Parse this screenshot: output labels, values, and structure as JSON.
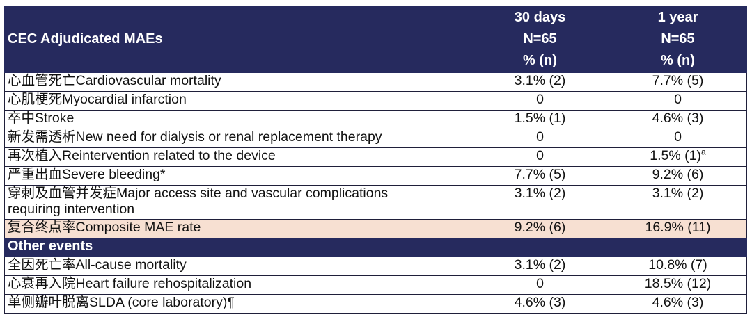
{
  "table": {
    "header": {
      "label": "CEC Adjudicated MAEs",
      "col1": [
        "30 days",
        "N=65",
        "% (n)"
      ],
      "col2": [
        "1 year",
        "N=65",
        "% (n)"
      ]
    },
    "rows": [
      {
        "label": "心血管死亡Cardiovascular mortality",
        "d30": "3.1% (2)",
        "y1": "7.7% (5)"
      },
      {
        "label": "心肌梗死Myocardial infarction",
        "d30": "0",
        "y1": "0"
      },
      {
        "label": "卒中Stroke",
        "d30": "1.5% (1)",
        "y1": "4.6% (3)"
      },
      {
        "label": "新发需透析New need for dialysis or renal replacement therapy",
        "d30": "0",
        "y1": "0"
      },
      {
        "label": "再次植入Reintervention related to the device",
        "d30": "0",
        "y1": "1.5% (1)",
        "y1_sup": "a"
      },
      {
        "label": "严重出血Severe bleeding*",
        "d30": "7.7% (5)",
        "y1": "9.2% (6)"
      },
      {
        "label_line1": "穿刺及血管并发症Major access site and vascular complications",
        "label_line2": "requiring intervention",
        "d30": "3.1% (2)",
        "y1": "3.1% (2)"
      },
      {
        "label": "复合终点率Composite MAE rate",
        "d30": "9.2% (6)",
        "y1": "16.9% (11)"
      }
    ],
    "section": "Other events",
    "other_rows": [
      {
        "label": "全因死亡率All-cause mortality",
        "d30": "3.1% (2)",
        "y1": "10.8% (7)"
      },
      {
        "label": "心衰再入院Heart failure rehospitalization",
        "d30": "0",
        "y1": "18.5% (12)"
      },
      {
        "label": "单侧瓣叶脱离SLDA (core laboratory)¶",
        "d30": "4.6% (3)",
        "y1": "4.6% (3)"
      }
    ]
  },
  "colors": {
    "header_bg": "#262a5e",
    "highlight_bg": "#f7e0d2"
  }
}
